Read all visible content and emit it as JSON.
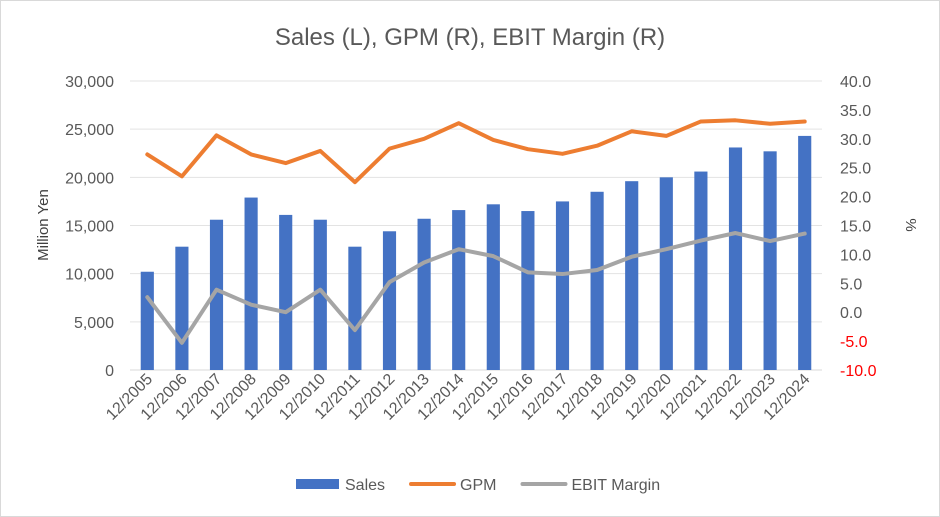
{
  "chart_data": {
    "type": "bar",
    "title": "Sales (L), GPM (R), EBIT Margin (R)",
    "ylabel": "Million Yen",
    "y2label": "%",
    "xlabel": "",
    "categories": [
      "12/2005",
      "12/2006",
      "12/2007",
      "12/2008",
      "12/2009",
      "12/2010",
      "12/2011",
      "12/2012",
      "12/2013",
      "12/2014",
      "12/2015",
      "12/2016",
      "12/2017",
      "12/2018",
      "12/2019",
      "12/2020",
      "12/2021",
      "12/2022",
      "12/2023",
      "12/2024"
    ],
    "ylim": [
      0,
      30000
    ],
    "y_ticks": [
      0,
      5000,
      10000,
      15000,
      20000,
      25000,
      30000
    ],
    "y_tick_labels": [
      "0",
      "5,000",
      "10,000",
      "15,000",
      "20,000",
      "25,000",
      "30,000"
    ],
    "y2lim": [
      -10,
      40
    ],
    "y2_ticks": [
      -10,
      -5,
      0,
      5,
      10,
      15,
      20,
      25,
      30,
      35,
      40
    ],
    "y2_tick_labels": [
      "-10.0",
      "-5.0",
      "0.0",
      "5.0",
      "10.0",
      "15.0",
      "20.0",
      "25.0",
      "30.0",
      "35.0",
      "40.0"
    ],
    "negative_tick_color": "#ff0000",
    "legend_position": "bottom",
    "grid": true,
    "series": [
      {
        "name": "Sales",
        "type": "bar",
        "axis": "left",
        "color": "#4472c4",
        "values": [
          10200,
          12800,
          15600,
          17900,
          16100,
          15600,
          12800,
          14400,
          15700,
          16600,
          17200,
          16500,
          17500,
          18500,
          19600,
          20000,
          20600,
          23100,
          22700,
          24300
        ]
      },
      {
        "name": "GPM",
        "type": "line",
        "axis": "right",
        "color": "#ed7d31",
        "values": [
          27.3,
          23.5,
          30.6,
          27.3,
          25.8,
          27.9,
          22.5,
          28.3,
          30.0,
          32.7,
          29.8,
          28.2,
          27.4,
          28.8,
          31.3,
          30.5,
          33.0,
          33.2,
          32.6,
          33.0
        ]
      },
      {
        "name": "EBIT Margin",
        "type": "line",
        "axis": "right",
        "color": "#a5a5a5",
        "values": [
          2.6,
          -5.3,
          3.9,
          1.3,
          0.0,
          3.9,
          -3.1,
          5.2,
          8.6,
          10.9,
          9.7,
          6.9,
          6.6,
          7.3,
          9.6,
          10.9,
          12.4,
          13.7,
          12.3,
          13.6
        ]
      }
    ]
  }
}
